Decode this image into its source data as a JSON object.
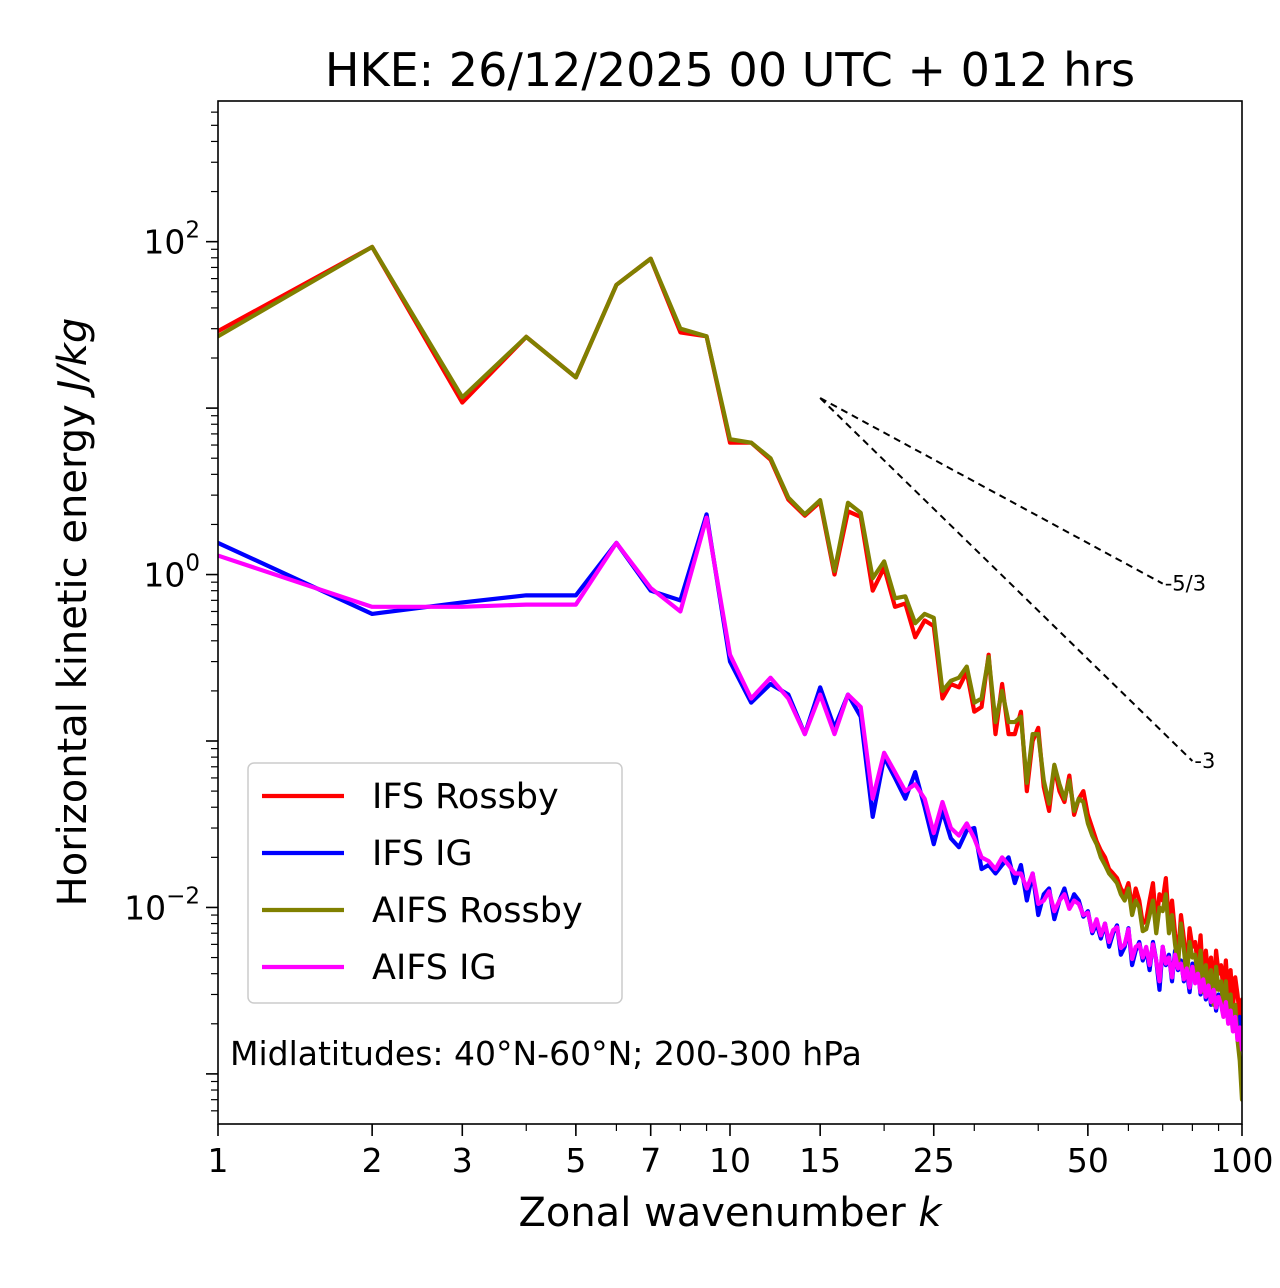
{
  "chart_data": {
    "type": "line",
    "title": "HKE: 26/12/2025 00 UTC + 012 hrs",
    "xlabel_main": "Zonal wavenumber ",
    "xlabel_var": "k",
    "ylabel_main": "Horizontal kinetic energy ",
    "ylabel_unit": "J/kg",
    "x_scale": "log",
    "y_scale": "log",
    "xlim": [
      1,
      100
    ],
    "ylim": [
      0.0005,
      700
    ],
    "x_ticks": [
      {
        "value": 1,
        "label": "1"
      },
      {
        "value": 2,
        "label": "2"
      },
      {
        "value": 3,
        "label": "3"
      },
      {
        "value": 5,
        "label": "5"
      },
      {
        "value": 7,
        "label": "7"
      },
      {
        "value": 10,
        "label": "10"
      },
      {
        "value": 15,
        "label": "15"
      },
      {
        "value": 25,
        "label": "25"
      },
      {
        "value": 50,
        "label": "50"
      },
      {
        "value": 100,
        "label": "100"
      }
    ],
    "y_ticks": [
      {
        "value": 100,
        "base": "10",
        "exp": "2"
      },
      {
        "value": 1,
        "base": "10",
        "exp": "0"
      },
      {
        "value": 0.01,
        "base": "10",
        "exp": "−2"
      }
    ],
    "legend_position": "lower-left",
    "annotation": "Midlatitudes: 40°N-60°N; 200-300 hPa",
    "reference_slopes": [
      {
        "label": "-5/3",
        "slope": -1.6667,
        "x_start": 15,
        "y_start": 11.5,
        "x_end": 70
      },
      {
        "label": "-3",
        "slope": -3,
        "x_start": 15,
        "y_start": 11.5,
        "x_end": 80
      }
    ],
    "series": [
      {
        "name": "IFS Rossby",
        "color": "#ff0000",
        "k_start": 1,
        "values": [
          29,
          93,
          10.8,
          26.8,
          15.3,
          55,
          79,
          28.5,
          27,
          6.2,
          6.2,
          4.9,
          2.82,
          2.26,
          2.73,
          1.0,
          2.4,
          2.22,
          0.8,
          1.1,
          0.64,
          0.67,
          0.42,
          0.53,
          0.49,
          0.18,
          0.22,
          0.21,
          0.26,
          0.15,
          0.16,
          0.33,
          0.11,
          0.22,
          0.11,
          0.11,
          0.15,
          0.05,
          0.1,
          0.12,
          0.053,
          0.038,
          0.07,
          0.05,
          0.043,
          0.062,
          0.036,
          0.045,
          0.05,
          0.036,
          0.03,
          0.025,
          0.022,
          0.02,
          0.017,
          0.016,
          0.015,
          0.013,
          0.012,
          0.014,
          0.01,
          0.013,
          0.011,
          0.008,
          0.0084,
          0.011,
          0.014,
          0.008,
          0.012,
          0.011,
          0.015,
          0.008,
          0.011,
          0.007,
          0.005,
          0.009,
          0.0065,
          0.0042,
          0.0075,
          0.0058,
          0.0062,
          0.0045,
          0.0068,
          0.0035,
          0.0055,
          0.0038,
          0.005,
          0.003,
          0.0055,
          0.004,
          0.0045,
          0.0032,
          0.0048,
          0.0028,
          0.0042,
          0.0025,
          0.0038,
          0.003,
          0.0022,
          0.0028
        ]
      },
      {
        "name": "IFS IG",
        "color": "#0000ff",
        "k_start": 1,
        "values": [
          1.55,
          0.58,
          0.68,
          0.75,
          0.75,
          1.55,
          0.8,
          0.7,
          2.3,
          0.3,
          0.17,
          0.22,
          0.19,
          0.11,
          0.21,
          0.12,
          0.19,
          0.14,
          0.035,
          0.08,
          0.06,
          0.045,
          0.065,
          0.04,
          0.024,
          0.038,
          0.026,
          0.023,
          0.029,
          0.03,
          0.017,
          0.018,
          0.016,
          0.018,
          0.02,
          0.014,
          0.018,
          0.011,
          0.016,
          0.009,
          0.012,
          0.013,
          0.0085,
          0.011,
          0.013,
          0.01,
          0.012,
          0.011,
          0.0088,
          0.0095,
          0.007,
          0.008,
          0.0065,
          0.008,
          0.0058,
          0.007,
          0.0078,
          0.0052,
          0.0058,
          0.0075,
          0.0045,
          0.0055,
          0.0062,
          0.0048,
          0.0056,
          0.0042,
          0.0062,
          0.0048,
          0.0032,
          0.0058,
          0.0045,
          0.0052,
          0.0036,
          0.0055,
          0.0042,
          0.0048,
          0.0036,
          0.0042,
          0.0031,
          0.0046,
          0.0036,
          0.0042,
          0.003,
          0.0038,
          0.0028,
          0.0035,
          0.0026,
          0.0034,
          0.0024,
          0.003,
          0.0027,
          0.0023,
          0.0029,
          0.0021,
          0.0026,
          0.0019,
          0.0024,
          0.0017,
          0.0022,
          0.0016
        ]
      },
      {
        "name": "AIFS Rossby",
        "color": "#808000",
        "k_start": 1,
        "values": [
          27,
          93,
          11.6,
          26.8,
          15.3,
          55,
          79,
          30,
          27,
          6.5,
          6.2,
          5.0,
          2.9,
          2.3,
          2.8,
          1.05,
          2.7,
          2.35,
          0.95,
          1.2,
          0.72,
          0.74,
          0.51,
          0.58,
          0.55,
          0.2,
          0.23,
          0.24,
          0.28,
          0.17,
          0.18,
          0.32,
          0.13,
          0.2,
          0.13,
          0.13,
          0.14,
          0.056,
          0.11,
          0.11,
          0.058,
          0.042,
          0.072,
          0.055,
          0.045,
          0.058,
          0.038,
          0.045,
          0.043,
          0.032,
          0.027,
          0.024,
          0.02,
          0.018,
          0.016,
          0.015,
          0.014,
          0.012,
          0.011,
          0.013,
          0.009,
          0.011,
          0.01,
          0.0072,
          0.0074,
          0.009,
          0.011,
          0.007,
          0.01,
          0.0095,
          0.012,
          0.007,
          0.009,
          0.006,
          0.0045,
          0.008,
          0.0056,
          0.0038,
          0.0062,
          0.005,
          0.0052,
          0.0038,
          0.0055,
          0.0031,
          0.0045,
          0.0032,
          0.0042,
          0.0026,
          0.0044,
          0.0032,
          0.0036,
          0.0025,
          0.0036,
          0.0022,
          0.003,
          0.0019,
          0.0026,
          0.0016,
          0.0012,
          0.0007
        ]
      },
      {
        "name": "AIFS IG",
        "color": "#ff00ff",
        "k_start": 1,
        "values": [
          1.3,
          0.64,
          0.64,
          0.66,
          0.66,
          1.55,
          0.83,
          0.6,
          2.2,
          0.33,
          0.18,
          0.24,
          0.18,
          0.11,
          0.19,
          0.11,
          0.19,
          0.16,
          0.045,
          0.085,
          0.065,
          0.05,
          0.055,
          0.045,
          0.028,
          0.043,
          0.03,
          0.027,
          0.032,
          0.026,
          0.02,
          0.019,
          0.017,
          0.02,
          0.018,
          0.016,
          0.016,
          0.013,
          0.016,
          0.0105,
          0.011,
          0.0125,
          0.0095,
          0.011,
          0.012,
          0.0098,
          0.011,
          0.0105,
          0.009,
          0.0093,
          0.0072,
          0.0085,
          0.0068,
          0.008,
          0.0062,
          0.0073,
          0.0076,
          0.0057,
          0.006,
          0.0074,
          0.0049,
          0.0058,
          0.006,
          0.005,
          0.0058,
          0.0045,
          0.006,
          0.0048,
          0.0036,
          0.0058,
          0.0046,
          0.005,
          0.0038,
          0.0052,
          0.0043,
          0.0046,
          0.0037,
          0.0043,
          0.0033,
          0.0044,
          0.0035,
          0.004,
          0.0031,
          0.0037,
          0.0029,
          0.0034,
          0.0027,
          0.0032,
          0.0025,
          0.0029,
          0.0026,
          0.0022,
          0.0027,
          0.002,
          0.0024,
          0.0018,
          0.0022,
          0.0016,
          0.0019,
          0.0014
        ]
      }
    ]
  }
}
